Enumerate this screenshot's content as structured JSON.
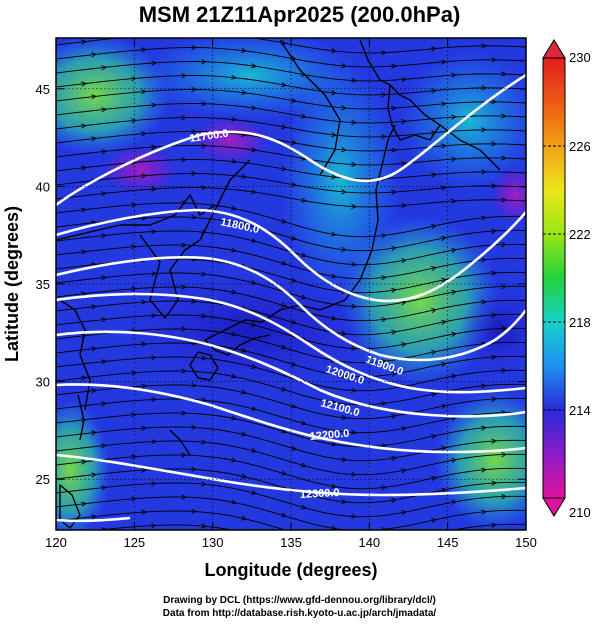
{
  "title": "MSM 21Z11Apr2025 (200.0hPa)",
  "credits": {
    "line1": "Drawing by DCL (https://www.gfd-dennou.org/library/dcl/)",
    "line2": "Data from http://database.rish.kyoto-u.ac.jp/arch/jmadata/"
  },
  "map": {
    "xlabel": "Longitude (degrees)",
    "ylabel": "Latitude  (degrees)",
    "lon_range": [
      120,
      150
    ],
    "lat_range": [
      22.4,
      47.6
    ],
    "lon_ticks": [
      "120",
      "125",
      "130",
      "135",
      "140",
      "145",
      "150"
    ],
    "lat_ticks": [
      "25",
      "30",
      "35",
      "40",
      "45"
    ],
    "colorbar": {
      "range": [
        210,
        230
      ],
      "tick_labels": [
        "230",
        "226",
        "222",
        "218",
        "214",
        "210"
      ],
      "colors": [
        "#e0149c",
        "#8a1cc8",
        "#2a2ad8",
        "#1e90f0",
        "#16d2c8",
        "#22d23c",
        "#9ae614",
        "#ece61c",
        "#f0a014",
        "#ec5a14",
        "#e01e1e"
      ]
    },
    "contours": [
      {
        "value": 11700,
        "label": "11700.0"
      },
      {
        "value": 11800,
        "label": "11800.0"
      },
      {
        "value": 11900,
        "label": "11900.0"
      },
      {
        "value": 12000,
        "label": "12000.0"
      },
      {
        "value": 12100,
        "label": "12100.0"
      },
      {
        "value": 12200,
        "label": "12200.0"
      },
      {
        "value": 12300,
        "label": "12300.0"
      }
    ]
  }
}
